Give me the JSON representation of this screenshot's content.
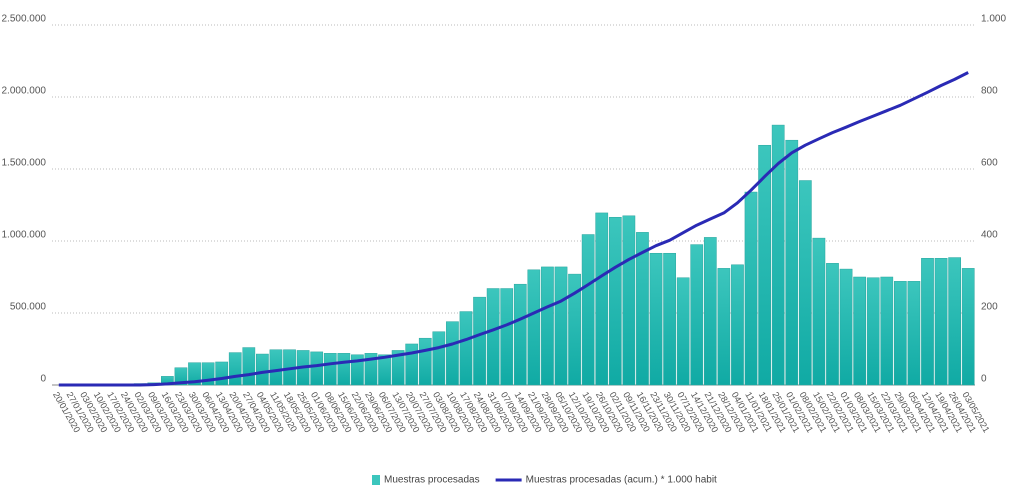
{
  "chart_data": {
    "type": "bar_line",
    "categories": [
      "20/01/2020",
      "27/01/2020",
      "03/02/2020",
      "10/02/2020",
      "17/02/2020",
      "24/02/2020",
      "02/03/2020",
      "09/03/2020",
      "16/03/2020",
      "23/03/2020",
      "30/03/2020",
      "06/04/2020",
      "13/04/2020",
      "20/04/2020",
      "27/04/2020",
      "04/05/2020",
      "11/05/2020",
      "18/05/2020",
      "25/05/2020",
      "01/06/2020",
      "08/06/2020",
      "15/06/2020",
      "22/06/2020",
      "29/06/2020",
      "06/07/2020",
      "13/07/2020",
      "20/07/2020",
      "27/07/2020",
      "03/08/2020",
      "10/08/2020",
      "17/08/2020",
      "24/08/2020",
      "31/08/2020",
      "07/09/2020",
      "14/09/2020",
      "21/09/2020",
      "28/09/2020",
      "05/10/2020",
      "12/10/2020",
      "19/10/2020",
      "26/10/2020",
      "02/11/2020",
      "09/11/2020",
      "16/11/2020",
      "23/11/2020",
      "30/11/2020",
      "07/12/2020",
      "14/12/2020",
      "21/12/2020",
      "28/12/2020",
      "04/01/2021",
      "11/01/2021",
      "18/01/2021",
      "25/01/2021",
      "01/02/2021",
      "08/02/2021",
      "15/02/2021",
      "22/02/2021",
      "01/03/2021",
      "08/03/2021",
      "15/03/2021",
      "22/03/2021",
      "29/03/2021",
      "05/04/2021",
      "12/04/2021",
      "19/04/2021",
      "26/04/2021",
      "03/05/2021"
    ],
    "series": [
      {
        "name": "Muestras procesadas",
        "color": "#3cc6bd",
        "values": [
          0,
          0,
          2000,
          3000,
          3000,
          5000,
          10000,
          15000,
          60000,
          120000,
          155000,
          155000,
          160000,
          225000,
          260000,
          215000,
          245000,
          245000,
          240000,
          230000,
          220000,
          220000,
          210000,
          220000,
          210000,
          240000,
          285000,
          325000,
          370000,
          440000,
          510000,
          610000,
          670000,
          670000,
          700000,
          800000,
          820000,
          820000,
          770000,
          1045000,
          1195000,
          1165000,
          1175000,
          1060000,
          915000,
          915000,
          745000,
          975000,
          1025000,
          810000,
          835000,
          1340000,
          1665000,
          1805000,
          1700000,
          1420000,
          1020000,
          845000,
          805000,
          750000,
          745000,
          750000,
          720000,
          720000,
          880000,
          880000,
          885000,
          810000
        ]
      },
      {
        "name": "Muestras procesadas (acum.) * 1.000 habit",
        "color": "#2a2ab5",
        "axis": "y2",
        "values": [
          0,
          0,
          0,
          0,
          0,
          0,
          0,
          1,
          3,
          6,
          9,
          13,
          18,
          24,
          29,
          35,
          40,
          45,
          50,
          54,
          59,
          63,
          67,
          72,
          77,
          83,
          89,
          96,
          104,
          114,
          126,
          140,
          153,
          167,
          183,
          200,
          217,
          233,
          255,
          279,
          303,
          327,
          349,
          368,
          387,
          402,
          423,
          444,
          461,
          478,
          506,
          541,
          579,
          615,
          645,
          666,
          684,
          701,
          716,
          732,
          747,
          762,
          777,
          795,
          813,
          832,
          849,
          868
        ]
      }
    ],
    "ylim": [
      0,
      2500000
    ],
    "yticks": [
      {
        "value": 0,
        "label": "0"
      },
      {
        "value": 500000,
        "label": "500.000"
      },
      {
        "value": 1000000,
        "label": "1.000.000"
      },
      {
        "value": 1500000,
        "label": "1.500.000"
      },
      {
        "value": 2000000,
        "label": "2.000.000"
      },
      {
        "value": 2500000,
        "label": "2.500.000"
      }
    ],
    "y2lim": [
      0,
      1000
    ],
    "y2ticks": [
      0,
      200,
      400,
      600,
      800,
      {
        "value": 1000,
        "label": "1.000"
      }
    ],
    "grid": true,
    "legend": "bottom"
  }
}
